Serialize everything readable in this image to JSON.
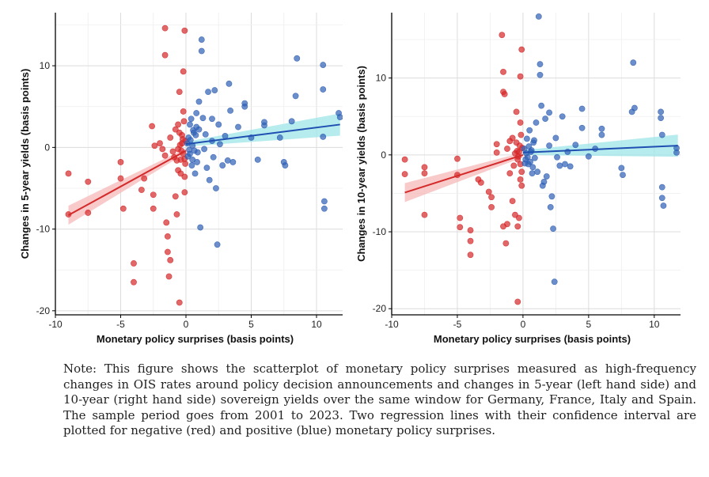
{
  "note": "Note: This figure shows the scatterplot of monetary policy surprises measured as high-frequency changes in OIS rates around policy decision announcements and changes in 5-year (left hand side) and 10-year (right hand side) sovereign yields over the same window for Germany, France, Italy and Spain. The sample period goes from 2001 to 2023. Two regression lines with their confidence interval are plotted for negative (red) and positive (blue) monetary policy surprises.",
  "colors": {
    "negative": "#d62728",
    "positive": "#2e5fb5",
    "neg_band": "#f6b8b8",
    "pos_band": "#9fe6ea",
    "neg_line": "#d42a2a",
    "pos_line": "#1f4fb0"
  },
  "chart_data": [
    {
      "type": "scatter",
      "xlabel": "Monetary policy surprises (basis points)",
      "ylabel": "Changes in 5-year yields (basis points)",
      "xlim": [
        -10,
        12
      ],
      "ylim": [
        -20.5,
        16.5
      ],
      "xticks": [
        -10,
        -5,
        0,
        5,
        10
      ],
      "yticks": [
        -20,
        -10,
        0,
        10
      ],
      "grid": true,
      "series": [
        {
          "name": "",
          "color_key": "negative",
          "points": [
            [
              -9,
              -3.2
            ],
            [
              -9,
              -8.2
            ],
            [
              -7.5,
              -4.2
            ],
            [
              -7.5,
              -8
            ],
            [
              -5,
              -1.8
            ],
            [
              -5,
              -3.8
            ],
            [
              -4.8,
              -7.5
            ],
            [
              -4,
              -14.2
            ],
            [
              -4,
              -16.5
            ],
            [
              -3.4,
              -5.2
            ],
            [
              -3.2,
              -3.8
            ],
            [
              -2.6,
              2.6
            ],
            [
              -2.5,
              -5.8
            ],
            [
              -2.5,
              -7.5
            ],
            [
              -2.4,
              0.2
            ],
            [
              -2,
              0.5
            ],
            [
              -1.8,
              -0.2
            ],
            [
              -1.6,
              14.6
            ],
            [
              -1.6,
              11.3
            ],
            [
              -1.5,
              -9.2
            ],
            [
              -1.4,
              -10.9
            ],
            [
              -1.4,
              -12.8
            ],
            [
              -1.2,
              -13.8
            ],
            [
              -1.3,
              -15.8
            ],
            [
              -1,
              -0.5
            ],
            [
              -0.9,
              -1.2
            ],
            [
              -0.8,
              -6
            ],
            [
              -0.7,
              -8.2
            ],
            [
              -0.6,
              -2.8
            ],
            [
              -0.6,
              2.8
            ],
            [
              -0.5,
              -19
            ],
            [
              -0.5,
              6.8
            ],
            [
              -0.4,
              -3.2
            ],
            [
              -0.3,
              1.5
            ],
            [
              -0.2,
              9.3
            ],
            [
              -0.1,
              14.3
            ],
            [
              -0.1,
              -5.5
            ],
            [
              -0.05,
              -2
            ],
            [
              -0.3,
              0.5
            ],
            [
              -0.2,
              -0.8
            ],
            [
              -0.15,
              3.2
            ],
            [
              -0.1,
              -1.4
            ],
            [
              -0.05,
              0.8
            ],
            [
              -0.4,
              -1.5
            ],
            [
              -0.5,
              1.8
            ],
            [
              -0.6,
              -0.2
            ],
            [
              -0.8,
              2.2
            ],
            [
              -1.2,
              1.2
            ],
            [
              -1.6,
              -1
            ],
            [
              -0.7,
              -1.6
            ],
            [
              -0.25,
              1
            ],
            [
              -0.35,
              -0.4
            ],
            [
              -0.45,
              0.3
            ],
            [
              -0.1,
              -3.6
            ],
            [
              -0.2,
              4.4
            ]
          ],
          "fit": {
            "from": [
              -9,
              -8.3
            ],
            "to": [
              0,
              -0.4
            ]
          }
        },
        {
          "name": "",
          "color_key": "positive",
          "points": [
            [
              0.1,
              0.5
            ],
            [
              0.2,
              1.2
            ],
            [
              0.3,
              -0.8
            ],
            [
              0.3,
              2.8
            ],
            [
              0.4,
              3.5
            ],
            [
              0.5,
              -1.5
            ],
            [
              0.5,
              0.2
            ],
            [
              0.6,
              1.8
            ],
            [
              0.7,
              -3.2
            ],
            [
              0.8,
              2.5
            ],
            [
              0.8,
              4.2
            ],
            [
              0.9,
              -0.6
            ],
            [
              1,
              2.2
            ],
            [
              1,
              5.6
            ],
            [
              1.1,
              -9.8
            ],
            [
              1.2,
              13.2
            ],
            [
              1.2,
              11.8
            ],
            [
              1.3,
              3.6
            ],
            [
              1.4,
              -0.2
            ],
            [
              1.5,
              1.6
            ],
            [
              1.6,
              -2.5
            ],
            [
              1.7,
              6.8
            ],
            [
              1.8,
              -4
            ],
            [
              2,
              0.8
            ],
            [
              2,
              3.5
            ],
            [
              2.1,
              -1.2
            ],
            [
              2.2,
              7
            ],
            [
              2.3,
              -5
            ],
            [
              2.4,
              -11.9
            ],
            [
              2.5,
              2.8
            ],
            [
              2.6,
              0.4
            ],
            [
              2.8,
              -2.2
            ],
            [
              3,
              1.4
            ],
            [
              3.2,
              -1.6
            ],
            [
              3.3,
              7.8
            ],
            [
              3.4,
              4.5
            ],
            [
              3.6,
              -1.8
            ],
            [
              4,
              2.5
            ],
            [
              4.5,
              5
            ],
            [
              4.5,
              5.4
            ],
            [
              5,
              1.2
            ],
            [
              5.5,
              -1.5
            ],
            [
              6,
              3.1
            ],
            [
              6,
              2.7
            ],
            [
              7.2,
              1.2
            ],
            [
              7.5,
              -1.8
            ],
            [
              7.6,
              -2.2
            ],
            [
              8.1,
              3.2
            ],
            [
              8.4,
              6.3
            ],
            [
              8.5,
              10.9
            ],
            [
              10.5,
              10.1
            ],
            [
              10.5,
              7.1
            ],
            [
              10.5,
              1.3
            ],
            [
              10.6,
              -6.6
            ],
            [
              10.6,
              -7.5
            ],
            [
              11.7,
              4.2
            ],
            [
              11.8,
              3.7
            ],
            [
              0.15,
              -1.1
            ],
            [
              0.25,
              -0.3
            ],
            [
              0.35,
              0.9
            ],
            [
              0.45,
              -2.2
            ],
            [
              0.55,
              2.1
            ],
            [
              0.65,
              -0.4
            ],
            [
              0.75,
              1.5
            ],
            [
              0.85,
              -1.8
            ]
          ],
          "fit": {
            "from": [
              0,
              0.4
            ],
            "to": [
              11.8,
              2.8
            ]
          }
        }
      ]
    },
    {
      "type": "scatter",
      "xlabel": "Monetary policy surprises (basis points)",
      "ylabel": "Changes in 10-year yields (basis points)",
      "xlim": [
        -10,
        12
      ],
      "ylim": [
        -20.8,
        18.5
      ],
      "xticks": [
        -10,
        -5,
        0,
        5,
        10
      ],
      "yticks": [
        -20,
        -10,
        0,
        10
      ],
      "grid": true,
      "series": [
        {
          "name": "",
          "color_key": "negative",
          "points": [
            [
              -9,
              -0.6
            ],
            [
              -9,
              -2.5
            ],
            [
              -7.5,
              -1.6
            ],
            [
              -7.5,
              -2.4
            ],
            [
              -7.5,
              -7.8
            ],
            [
              -5,
              -0.5
            ],
            [
              -5,
              -2.6
            ],
            [
              -4.8,
              -8.2
            ],
            [
              -4.8,
              -9.4
            ],
            [
              -4,
              -9.8
            ],
            [
              -4,
              -11.2
            ],
            [
              -4,
              -13
            ],
            [
              -3.4,
              -3.2
            ],
            [
              -3.2,
              -3.6
            ],
            [
              -2.6,
              -4.8
            ],
            [
              -2.4,
              -5.5
            ],
            [
              -2.4,
              -6.8
            ],
            [
              -2,
              1.4
            ],
            [
              -2,
              0.3
            ],
            [
              -1.6,
              15.6
            ],
            [
              -1.5,
              10.8
            ],
            [
              -1.5,
              8.2
            ],
            [
              -1.4,
              7.9
            ],
            [
              -1.5,
              -9.3
            ],
            [
              -1.3,
              -11.5
            ],
            [
              -1.2,
              -9
            ],
            [
              -1,
              1.8
            ],
            [
              -1,
              -2.4
            ],
            [
              -0.8,
              -6
            ],
            [
              -0.6,
              -7.8
            ],
            [
              -0.5,
              5.6
            ],
            [
              -0.4,
              -9.3
            ],
            [
              -0.4,
              -19.1
            ],
            [
              -0.2,
              10.2
            ],
            [
              -0.1,
              13.7
            ],
            [
              -0.1,
              -4
            ],
            [
              -0.3,
              0.4
            ],
            [
              -0.2,
              -1.2
            ],
            [
              -0.15,
              2.6
            ],
            [
              -0.1,
              -2.2
            ],
            [
              -0.05,
              0.9
            ],
            [
              -0.4,
              -0.6
            ],
            [
              -0.5,
              1.6
            ],
            [
              -0.6,
              0.2
            ],
            [
              -0.8,
              2.2
            ],
            [
              -1.2,
              0.8
            ],
            [
              -0.7,
              -1.4
            ],
            [
              -0.25,
              1.2
            ],
            [
              -0.35,
              -0.2
            ],
            [
              -0.45,
              0.5
            ],
            [
              -0.2,
              -3.2
            ],
            [
              -0.2,
              4.2
            ],
            [
              -0.3,
              -8.2
            ]
          ],
          "fit": {
            "from": [
              -9,
              -4.9
            ],
            "to": [
              0,
              0
            ]
          }
        },
        {
          "name": "",
          "color_key": "positive",
          "points": [
            [
              0.1,
              0.8
            ],
            [
              0.2,
              -0.6
            ],
            [
              0.3,
              2.1
            ],
            [
              0.4,
              -1.2
            ],
            [
              0.5,
              3.2
            ],
            [
              0.6,
              0.4
            ],
            [
              0.7,
              -2.4
            ],
            [
              0.8,
              1.6
            ],
            [
              0.9,
              -0.4
            ],
            [
              1,
              4.2
            ],
            [
              1.1,
              -2.2
            ],
            [
              1.2,
              18
            ],
            [
              1.3,
              11.8
            ],
            [
              1.3,
              10.4
            ],
            [
              1.4,
              6.4
            ],
            [
              1.5,
              -4
            ],
            [
              1.6,
              -3.5
            ],
            [
              1.7,
              4.7
            ],
            [
              1.8,
              -2.8
            ],
            [
              2,
              1.2
            ],
            [
              2,
              5.5
            ],
            [
              2.1,
              -6.8
            ],
            [
              2.2,
              -5.4
            ],
            [
              2.3,
              -9.6
            ],
            [
              2.4,
              -16.5
            ],
            [
              2.5,
              2.2
            ],
            [
              2.6,
              -0.3
            ],
            [
              2.8,
              -1.4
            ],
            [
              3,
              5
            ],
            [
              3.2,
              -1.2
            ],
            [
              3.4,
              0.4
            ],
            [
              3.6,
              -1.5
            ],
            [
              4,
              1.3
            ],
            [
              4.5,
              6
            ],
            [
              4.5,
              3.5
            ],
            [
              5,
              -0.2
            ],
            [
              5.5,
              0.8
            ],
            [
              6,
              3.4
            ],
            [
              6,
              2.6
            ],
            [
              7.5,
              -1.7
            ],
            [
              7.6,
              -2.6
            ],
            [
              8.3,
              5.6
            ],
            [
              8.4,
              12
            ],
            [
              8.5,
              6.1
            ],
            [
              10.5,
              4.8
            ],
            [
              10.5,
              5.6
            ],
            [
              10.6,
              2.6
            ],
            [
              10.6,
              -4.2
            ],
            [
              10.6,
              -5.6
            ],
            [
              10.7,
              -6.6
            ],
            [
              11.7,
              0.9
            ],
            [
              11.7,
              0.3
            ],
            [
              0.15,
              -1.1
            ],
            [
              0.25,
              0.2
            ],
            [
              0.35,
              -0.3
            ],
            [
              0.45,
              1.1
            ],
            [
              0.55,
              -0.9
            ],
            [
              0.65,
              0.6
            ],
            [
              0.75,
              -1.6
            ],
            [
              0.85,
              1.9
            ]
          ],
          "fit": {
            "from": [
              0,
              0.3
            ],
            "to": [
              11.8,
              1.2
            ]
          }
        }
      ]
    }
  ]
}
